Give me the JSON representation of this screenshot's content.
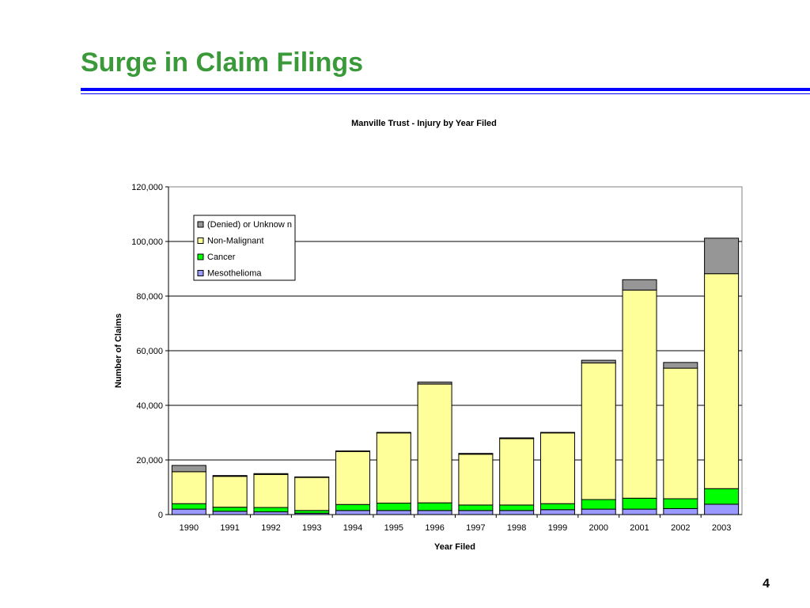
{
  "slide": {
    "title": "Surge in Claim Filings",
    "page_number": "4",
    "title_color": "#3a9a3a",
    "rule_color": "#0000ff"
  },
  "chart_data": {
    "type": "bar",
    "stacked": true,
    "title": "Manville Trust - Injury by Year Filed",
    "xlabel": "Year Filed",
    "ylabel": "Number of Claims",
    "ylim": [
      0,
      120000
    ],
    "yticks": [
      0,
      20000,
      40000,
      60000,
      80000,
      100000,
      120000
    ],
    "ytick_labels": [
      "0",
      "20,000",
      "40,000",
      "60,000",
      "80,000",
      "100,000",
      "120,000"
    ],
    "grid": true,
    "legend_position": "top-left",
    "categories": [
      "1990",
      "1991",
      "1992",
      "1993",
      "1994",
      "1995",
      "1996",
      "1997",
      "1998",
      "1999",
      "2000",
      "2001",
      "2002",
      "2003"
    ],
    "series": [
      {
        "name": "Mesothelioma",
        "color": "#9999ff",
        "values": [
          2000,
          1200,
          1000,
          500,
          1500,
          1500,
          1500,
          1500,
          1500,
          1800,
          2000,
          2000,
          2200,
          3800
        ]
      },
      {
        "name": "Cancer",
        "color": "#00ff00",
        "values": [
          2000,
          1500,
          1600,
          1000,
          2200,
          2700,
          2800,
          2000,
          2000,
          2200,
          3500,
          4000,
          3600,
          5700
        ]
      },
      {
        "name": "Non-Malignant",
        "color": "#ffff99",
        "values": [
          11700,
          11300,
          12100,
          12100,
          19400,
          25700,
          43500,
          18600,
          24300,
          25900,
          50000,
          76200,
          47800,
          78700
        ]
      },
      {
        "name": "(Denied) or Unknow n",
        "color": "#969696",
        "values": [
          2300,
          300,
          300,
          200,
          200,
          200,
          700,
          300,
          300,
          200,
          1000,
          3800,
          2100,
          13000
        ]
      }
    ]
  }
}
